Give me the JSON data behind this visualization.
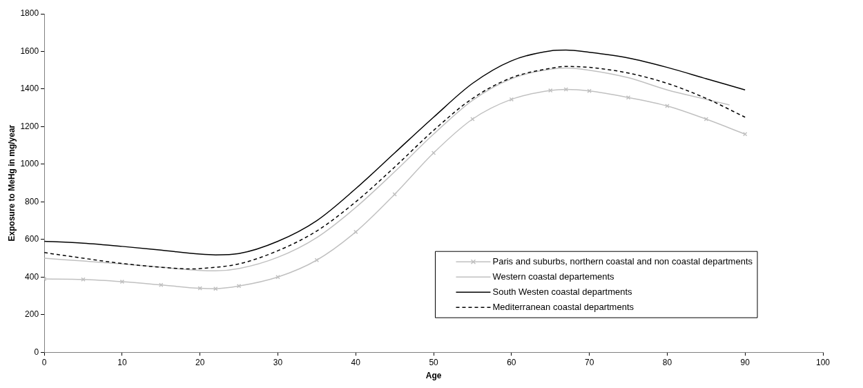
{
  "chart_data": {
    "type": "line",
    "xlabel": "Age",
    "ylabel": "Exposure to MeHg in mg/year",
    "xlim": [
      0,
      100
    ],
    "xticks": [
      0,
      10,
      20,
      30,
      40,
      50,
      60,
      70,
      80,
      90,
      100
    ],
    "ylim": [
      0,
      1800
    ],
    "yticks": [
      0,
      200,
      400,
      600,
      800,
      1000,
      1200,
      1400,
      1600,
      1800
    ],
    "grid": false,
    "legend": "bottom right",
    "series": [
      {
        "name": "Paris and suburbs, northern coastal and non coastal departments",
        "color": "#c0c0c0",
        "marker": "cross",
        "line_style": "solid",
        "x": [
          0,
          5,
          10,
          15,
          20,
          22,
          25,
          30,
          35,
          40,
          45,
          50,
          55,
          60,
          65,
          67,
          70,
          75,
          80,
          85,
          90
        ],
        "values": [
          390,
          387,
          375,
          358,
          340,
          338,
          352,
          400,
          490,
          640,
          840,
          1060,
          1240,
          1345,
          1392,
          1398,
          1390,
          1355,
          1310,
          1240,
          1160
        ]
      },
      {
        "name": "Western coastal departements",
        "color": "#c0c0c0",
        "marker": "none",
        "line_style": "solid",
        "x": [
          0,
          5,
          10,
          15,
          20,
          22,
          25,
          30,
          35,
          40,
          45,
          50,
          55,
          60,
          65,
          67,
          70,
          75,
          80,
          85,
          88
        ],
        "values": [
          500,
          485,
          470,
          452,
          435,
          433,
          445,
          505,
          610,
          770,
          960,
          1160,
          1340,
          1455,
          1505,
          1512,
          1500,
          1460,
          1395,
          1345,
          1315
        ]
      },
      {
        "name": "South Westen coastal departments",
        "color": "#000000",
        "marker": "none",
        "line_style": "solid",
        "x": [
          0,
          5,
          10,
          15,
          20,
          22,
          25,
          30,
          35,
          40,
          45,
          50,
          55,
          60,
          65,
          67,
          70,
          75,
          80,
          85,
          90
        ],
        "values": [
          590,
          580,
          563,
          543,
          522,
          518,
          525,
          590,
          700,
          870,
          1060,
          1250,
          1430,
          1550,
          1603,
          1607,
          1595,
          1565,
          1515,
          1455,
          1395
        ]
      },
      {
        "name": "Mediterranean coastal departments",
        "color": "#000000",
        "marker": "none",
        "line_style": "dashed",
        "x": [
          0,
          5,
          10,
          15,
          19,
          20,
          25,
          30,
          35,
          40,
          45,
          50,
          55,
          60,
          65,
          67,
          70,
          75,
          80,
          85,
          90
        ],
        "values": [
          530,
          500,
          472,
          452,
          443,
          445,
          470,
          540,
          645,
          800,
          985,
          1180,
          1350,
          1460,
          1510,
          1520,
          1515,
          1485,
          1430,
          1350,
          1250
        ]
      }
    ]
  }
}
